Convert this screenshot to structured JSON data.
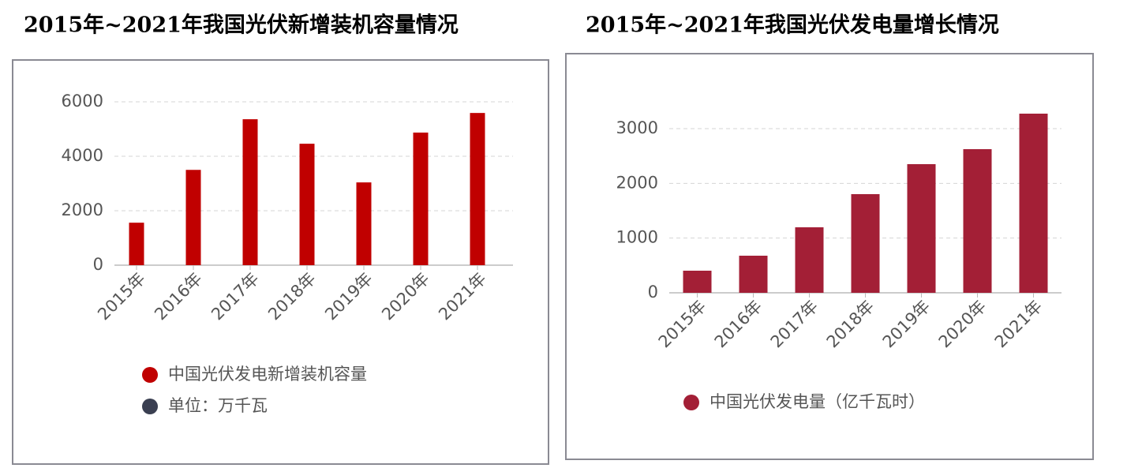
{
  "chart_data": [
    {
      "type": "bar",
      "title": "2015年~2021年我国光伏新增装机容量情况",
      "categories": [
        "2015年",
        "2016年",
        "2017年",
        "2018年",
        "2019年",
        "2020年",
        "2021年"
      ],
      "series": [
        {
          "name": "中国光伏发电新增装机容量",
          "color": "#c00000",
          "values": [
            1560,
            3500,
            5360,
            4460,
            3040,
            4870,
            5590
          ]
        }
      ],
      "legend_note": {
        "name": "单位：万千瓦",
        "color": "#3a3f51"
      },
      "ylim": [
        0,
        6000
      ],
      "yticks": [
        0,
        2000,
        4000,
        6000
      ],
      "grid": true
    },
    {
      "type": "bar",
      "title": "2015年~2021年我国光伏发电量增长情况",
      "categories": [
        "2015年",
        "2016年",
        "2017年",
        "2018年",
        "2019年",
        "2020年",
        "2021年"
      ],
      "series": [
        {
          "name": "中国光伏发电量（亿千瓦时）",
          "color": "#a31f36",
          "values": [
            404,
            678,
            1197,
            1803,
            2351,
            2625,
            3274
          ]
        }
      ],
      "ylim": [
        0,
        3400
      ],
      "yticks": [
        0,
        1000,
        2000,
        3000
      ],
      "grid": true
    }
  ]
}
